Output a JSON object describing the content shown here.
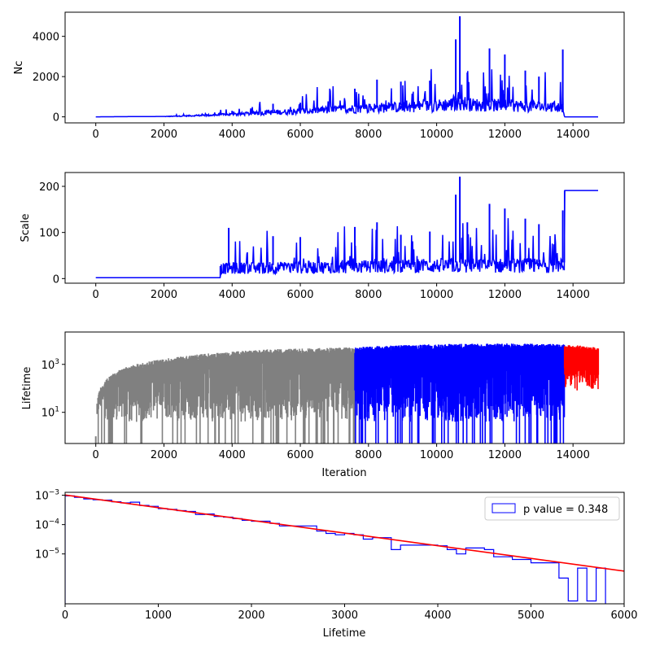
{
  "chart_data": [
    {
      "type": "line",
      "xlabel": "",
      "ylabel": "Nc",
      "xlim": [
        -900,
        15500
      ],
      "ylim": [
        -300,
        5200
      ],
      "x_ticks": [
        0,
        2000,
        4000,
        6000,
        8000,
        10000,
        12000,
        14000
      ],
      "y_ticks": [
        0,
        2000,
        4000
      ],
      "y_scale": "linear",
      "series": [
        {
          "color": "#0000ff",
          "x": [
            0,
            2000,
            3000,
            3600,
            4000,
            5000,
            6000,
            7000,
            7600,
            8000,
            9000,
            10000,
            10500,
            10700,
            11000,
            12000,
            13000,
            13700,
            13750,
            14750
          ],
          "values": [
            0,
            20,
            80,
            120,
            150,
            250,
            350,
            450,
            500,
            550,
            600,
            700,
            800,
            900,
            750,
            700,
            650,
            600,
            0,
            0
          ],
          "peaks": [
            {
              "x": 4000,
              "y": 300
            },
            {
              "x": 5200,
              "y": 650
            },
            {
              "x": 6000,
              "y": 700
            },
            {
              "x": 7600,
              "y": 1400
            },
            {
              "x": 8250,
              "y": 1850
            },
            {
              "x": 8950,
              "y": 1750
            },
            {
              "x": 9800,
              "y": 1800
            },
            {
              "x": 10560,
              "y": 3850
            },
            {
              "x": 10680,
              "y": 5000
            },
            {
              "x": 10900,
              "y": 2200
            },
            {
              "x": 11550,
              "y": 3400
            },
            {
              "x": 12000,
              "y": 3100
            },
            {
              "x": 12600,
              "y": 2300
            },
            {
              "x": 13000,
              "y": 2000
            },
            {
              "x": 13700,
              "y": 3350
            }
          ]
        }
      ]
    },
    {
      "type": "line",
      "xlabel": "",
      "ylabel": "Scale",
      "xlim": [
        -900,
        15500
      ],
      "ylim": [
        -10,
        230
      ],
      "x_ticks": [
        0,
        2000,
        4000,
        6000,
        8000,
        10000,
        12000,
        14000
      ],
      "y_ticks": [
        0,
        100,
        200
      ],
      "y_scale": "linear",
      "series": [
        {
          "color": "#0000ff",
          "x": [
            0,
            3650,
            3650,
            4000,
            6000,
            8000,
            10000,
            12000,
            13750,
            13750,
            14750
          ],
          "values": [
            2,
            2,
            27,
            28,
            30,
            32,
            35,
            35,
            35,
            191,
            191
          ],
          "peaks": [
            {
              "x": 3900,
              "y": 110
            },
            {
              "x": 5200,
              "y": 92
            },
            {
              "x": 6000,
              "y": 90
            },
            {
              "x": 7600,
              "y": 112
            },
            {
              "x": 8250,
              "y": 122
            },
            {
              "x": 8950,
              "y": 95
            },
            {
              "x": 9800,
              "y": 102
            },
            {
              "x": 10560,
              "y": 182
            },
            {
              "x": 10680,
              "y": 221
            },
            {
              "x": 10900,
              "y": 122
            },
            {
              "x": 11550,
              "y": 162
            },
            {
              "x": 12000,
              "y": 152
            },
            {
              "x": 12600,
              "y": 130
            },
            {
              "x": 13000,
              "y": 118
            },
            {
              "x": 13700,
              "y": 148
            }
          ]
        }
      ]
    },
    {
      "type": "line",
      "xlabel": "Iteration",
      "ylabel": "Lifetime",
      "xlim": [
        -900,
        15500
      ],
      "ylim_log10": [
        -0.3,
        4.35
      ],
      "x_ticks": [
        0,
        2000,
        4000,
        6000,
        8000,
        10000,
        12000,
        14000
      ],
      "y_ticks": [
        {
          "value": 10,
          "base": "10",
          "exp": "1"
        },
        {
          "value": 1000,
          "base": "10",
          "exp": "3"
        }
      ],
      "y_scale": "log",
      "series": [
        {
          "color": "#808080",
          "x_range": [
            0,
            7600
          ],
          "envelope_upper": [
            [
              0,
              1
            ],
            [
              200,
              150
            ],
            [
              500,
              400
            ],
            [
              1000,
              900
            ],
            [
              2000,
              1700
            ],
            [
              3000,
              2600
            ],
            [
              4000,
              3400
            ],
            [
              5000,
              4200
            ],
            [
              6000,
              4600
            ],
            [
              7000,
              5000
            ],
            [
              7600,
              5200
            ]
          ],
          "dips_to": 0.5
        },
        {
          "color": "#0000ff",
          "x_range": [
            7600,
            13750
          ],
          "envelope_upper": [
            [
              7600,
              5200
            ],
            [
              8500,
              6000
            ],
            [
              10000,
              7000
            ],
            [
              12000,
              7500
            ],
            [
              13750,
              7000
            ]
          ],
          "dips_to": 0.5
        },
        {
          "color": "#ff0000",
          "x_range": [
            13750,
            14750
          ],
          "envelope_upper": [
            [
              13750,
              7000
            ],
            [
              14750,
              5000
            ]
          ],
          "dips_to": 80
        }
      ]
    },
    {
      "type": "step-histogram",
      "xlabel": "Lifetime",
      "ylabel": "",
      "xlim": [
        0,
        6000
      ],
      "ylim_log10": [
        -6.7,
        -2.9
      ],
      "x_ticks": [
        0,
        1000,
        2000,
        3000,
        4000,
        5000,
        6000
      ],
      "y_ticks": [
        {
          "value": 1e-05,
          "base": "10",
          "exp": "−5"
        },
        {
          "value": 0.0001,
          "base": "10",
          "exp": "−4"
        },
        {
          "value": 0.001,
          "base": "10",
          "exp": "−3"
        }
      ],
      "y_scale": "log",
      "series": [
        {
          "name": "p value = 0.348",
          "color": "#0000ff",
          "bin_edges": [
            0,
            100,
            200,
            300,
            400,
            500,
            600,
            700,
            800,
            900,
            1000,
            1100,
            1200,
            1300,
            1400,
            1500,
            1600,
            1700,
            1800,
            1900,
            2000,
            2100,
            2200,
            2300,
            2400,
            2500,
            2600,
            2700,
            2800,
            2900,
            3000,
            3100,
            3200,
            3300,
            3400,
            3500,
            3600,
            3700,
            3800,
            3900,
            4000,
            4100,
            4200,
            4300,
            4400,
            4500,
            4600,
            4700,
            4800,
            4900,
            5000,
            5100,
            5200,
            5300,
            5400,
            5500,
            5600,
            5700,
            5800
          ],
          "values": [
            0.00095,
            0.00085,
            0.00075,
            0.0007,
            0.00068,
            0.0006,
            0.00055,
            0.00058,
            0.00045,
            0.00042,
            0.00035,
            0.00033,
            0.0003,
            0.00028,
            0.00022,
            0.00023,
            0.00019,
            0.00018,
            0.00016,
            0.00014,
            0.00013,
            0.00013,
            0.00011,
            9e-05,
            9e-05,
            9e-05,
            9e-05,
            6e-05,
            5e-05,
            4.5e-05,
            5e-05,
            4.5e-05,
            3.2e-05,
            3.6e-05,
            3.6e-05,
            1.4e-05,
            2e-05,
            2e-05,
            2e-05,
            2e-05,
            1.9e-05,
            1.4e-05,
            1e-05,
            1.6e-05,
            1.6e-05,
            1.4e-05,
            8e-06,
            8e-06,
            6.5e-06,
            6.5e-06,
            5e-06,
            5e-06,
            5e-06,
            1.5e-06,
            2.5e-07,
            3.3e-06,
            2.5e-07,
            3.3e-06
          ]
        },
        {
          "color": "#ff0000",
          "type": "line",
          "x": [
            0,
            6000
          ],
          "values": [
            0.00102,
            2.6e-06
          ]
        }
      ],
      "legend": {
        "position": "top-right"
      }
    }
  ]
}
